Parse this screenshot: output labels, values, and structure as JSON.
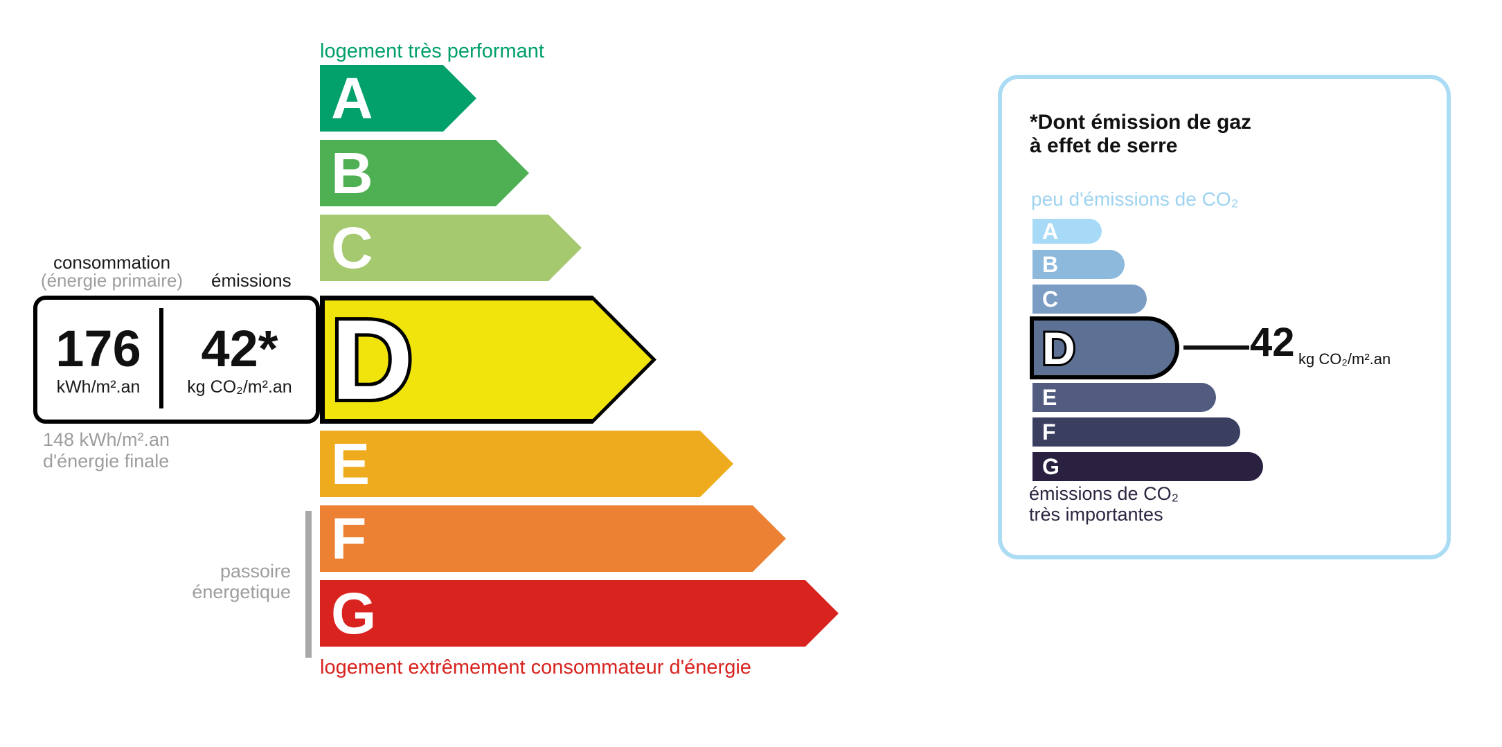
{
  "energy_scale": {
    "top_label": "logement très performant",
    "bottom_label": "logement extrêmement consommateur d'énergie",
    "top_label_color": "#00a06b",
    "bottom_label_color": "#d8231f",
    "current_grade": "D",
    "bars": [
      {
        "letter": "A",
        "color": "#02a06a"
      },
      {
        "letter": "B",
        "color": "#4eb052"
      },
      {
        "letter": "C",
        "color": "#a5c96f"
      },
      {
        "letter": "D",
        "color": "#f1e40d"
      },
      {
        "letter": "E",
        "color": "#efab1e"
      },
      {
        "letter": "F",
        "color": "#ec8133"
      },
      {
        "letter": "G",
        "color": "#d8231f"
      }
    ]
  },
  "consumption_box": {
    "label_line1": "consommation",
    "label_line2": "(énergie primaire)",
    "emissions_label": "émissions",
    "primary_value": "176",
    "primary_unit": "kWh/m².an",
    "emissions_value": "42*",
    "emissions_unit": "kg CO₂/m².an",
    "final_energy_line1": "148 kWh/m².an",
    "final_energy_line2": "d'énergie finale"
  },
  "passoire": {
    "line1": "passoire",
    "line2": "énergetique"
  },
  "co2_panel": {
    "title_line1": "*Dont émission de gaz",
    "title_line2": "à effet de serre",
    "top_label": "peu d'émissions de CO₂",
    "top_label_color": "#9ed3f0",
    "bottom_label_line1": "émissions de CO₂",
    "bottom_label_line2": "très importantes",
    "bottom_label_color": "#2e2540",
    "border_color": "#aadcf4",
    "value": "42",
    "value_unit": "kg CO₂/m².an",
    "current_grade": "D",
    "bars": [
      {
        "letter": "A",
        "color": "#a7daf6"
      },
      {
        "letter": "B",
        "color": "#8db9dd"
      },
      {
        "letter": "C",
        "color": "#7b9dc3"
      },
      {
        "letter": "D",
        "color": "#5d7195"
      },
      {
        "letter": "E",
        "color": "#525c80"
      },
      {
        "letter": "F",
        "color": "#3a3f60"
      },
      {
        "letter": "G",
        "color": "#2a2140"
      }
    ]
  }
}
